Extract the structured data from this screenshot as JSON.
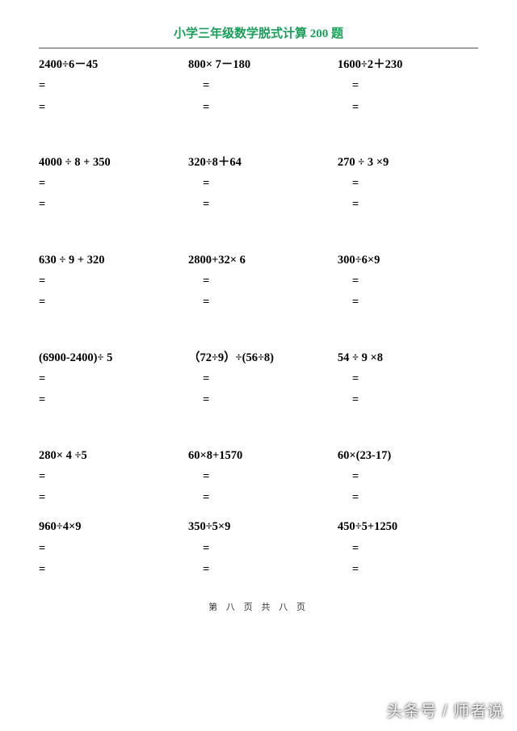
{
  "title_text": "小学三年级数学脱式计算 200 题",
  "title_color": "#18a058",
  "eq_sign": "=",
  "footer": "第 八 页 共 八 页",
  "watermark": "头条号 / 师者说",
  "groups": [
    {
      "gap_after": "lg",
      "problems": [
        "2400÷6－45",
        "800× 7－180",
        "1600÷2＋230"
      ]
    },
    {
      "gap_after": "lg",
      "problems": [
        "4000 ÷ 8 + 350",
        "320÷8＋64",
        "270 ÷ 3 ×9"
      ]
    },
    {
      "gap_after": "lg",
      "problems": [
        "630 ÷ 9 + 320",
        "2800+32× 6",
        "300÷6×9"
      ]
    },
    {
      "gap_after": "lg",
      "problems": [
        "(6900-2400)÷ 5",
        "（72÷9）÷(56÷8)",
        "54 ÷ 9 ×8"
      ]
    },
    {
      "gap_after": "sm",
      "problems": [
        "280× 4 ÷5",
        "60×8+1570",
        "60×(23-17)"
      ]
    },
    {
      "gap_after": "none",
      "problems": [
        "960÷4×9",
        "350÷5×9",
        "450÷5+1250"
      ]
    }
  ]
}
